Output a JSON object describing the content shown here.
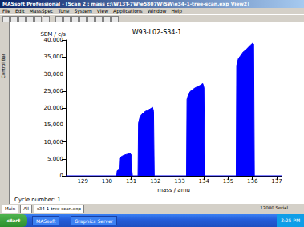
{
  "window": {
    "title": "MASsoft Professional - [Scan 2 : mass c:\\W13T-7W\\e5807W\\SW\\e34-1-tree-scan.exp View2]",
    "menu": [
      "File",
      "Edit",
      "MassSpec",
      "Tune",
      "System",
      "View",
      "Applications",
      "Window",
      "Help"
    ],
    "side_tab": "Control Bar"
  },
  "chart_data": {
    "type": "area",
    "title": "W93-L02-S34-1",
    "x_label": "mass / amu",
    "y_label": "SEM / c/s",
    "annotation": "Cycle number: 1",
    "color": "#0000ff",
    "grid": false,
    "x": [
      128.3,
      130.4,
      130.42,
      130.5,
      130.52,
      130.58,
      130.65,
      130.72,
      130.8,
      130.88,
      130.95,
      131.0,
      131.02,
      131.05,
      131.28,
      131.3,
      131.35,
      131.42,
      131.5,
      131.58,
      131.65,
      131.72,
      131.8,
      131.88,
      131.92,
      131.95,
      133.28,
      133.3,
      133.36,
      133.45,
      133.55,
      133.65,
      133.75,
      133.85,
      133.95,
      134.0,
      134.03,
      135.33,
      135.35,
      135.42,
      135.52,
      135.62,
      135.72,
      135.82,
      135.92,
      136.0,
      136.05,
      136.08,
      137.2
    ],
    "values": [
      0,
      0,
      1500,
      1800,
      5200,
      5600,
      5900,
      6100,
      6300,
      6400,
      6600,
      6200,
      2000,
      0,
      0,
      15500,
      17000,
      18000,
      18500,
      19000,
      19200,
      19500,
      19800,
      20200,
      19000,
      0,
      0,
      22500,
      24000,
      25000,
      25500,
      26000,
      26300,
      26700,
      27200,
      26000,
      0,
      0,
      32500,
      34500,
      35500,
      36500,
      37000,
      37800,
      38500,
      39000,
      38800,
      0,
      0
    ],
    "xlim": [
      128.3,
      137.2
    ],
    "xticks": [
      129,
      130,
      131,
      132,
      133,
      134,
      135,
      136,
      137
    ],
    "ylim": [
      0,
      40000
    ],
    "yticks": [
      0,
      5000,
      10000,
      15000,
      20000,
      25000,
      30000,
      35000,
      40000
    ]
  },
  "tabs": [
    "Main",
    "All",
    "s34-1-tree-scan.exp"
  ],
  "status": "12000 Serial",
  "taskbar": {
    "start": "start",
    "items": [
      "MASsoft",
      "Graphics Server"
    ],
    "clock": "3:25 PM"
  }
}
